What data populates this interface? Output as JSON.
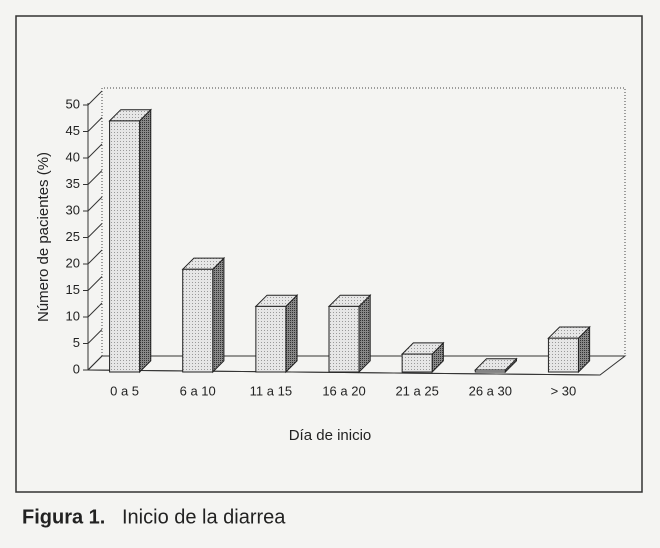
{
  "chart_data": {
    "type": "bar3d",
    "x_label": "Día de inicio",
    "y_label": "Número de pacientes (%)",
    "categories": [
      "0 a 5",
      "6 a 10",
      "11 a 15",
      "16 a 20",
      "21 a 25",
      "26 a 30",
      "> 30"
    ],
    "values": [
      47,
      19,
      12,
      12,
      3,
      0,
      6
    ],
    "color": "#e2e2e2",
    "ylim": [
      0,
      50
    ],
    "yticks": [
      0,
      5,
      10,
      15,
      20,
      25,
      30,
      35,
      40,
      45,
      50
    ]
  },
  "caption": {
    "label": "Figura 1.",
    "text": "Inicio de la diarrea"
  }
}
